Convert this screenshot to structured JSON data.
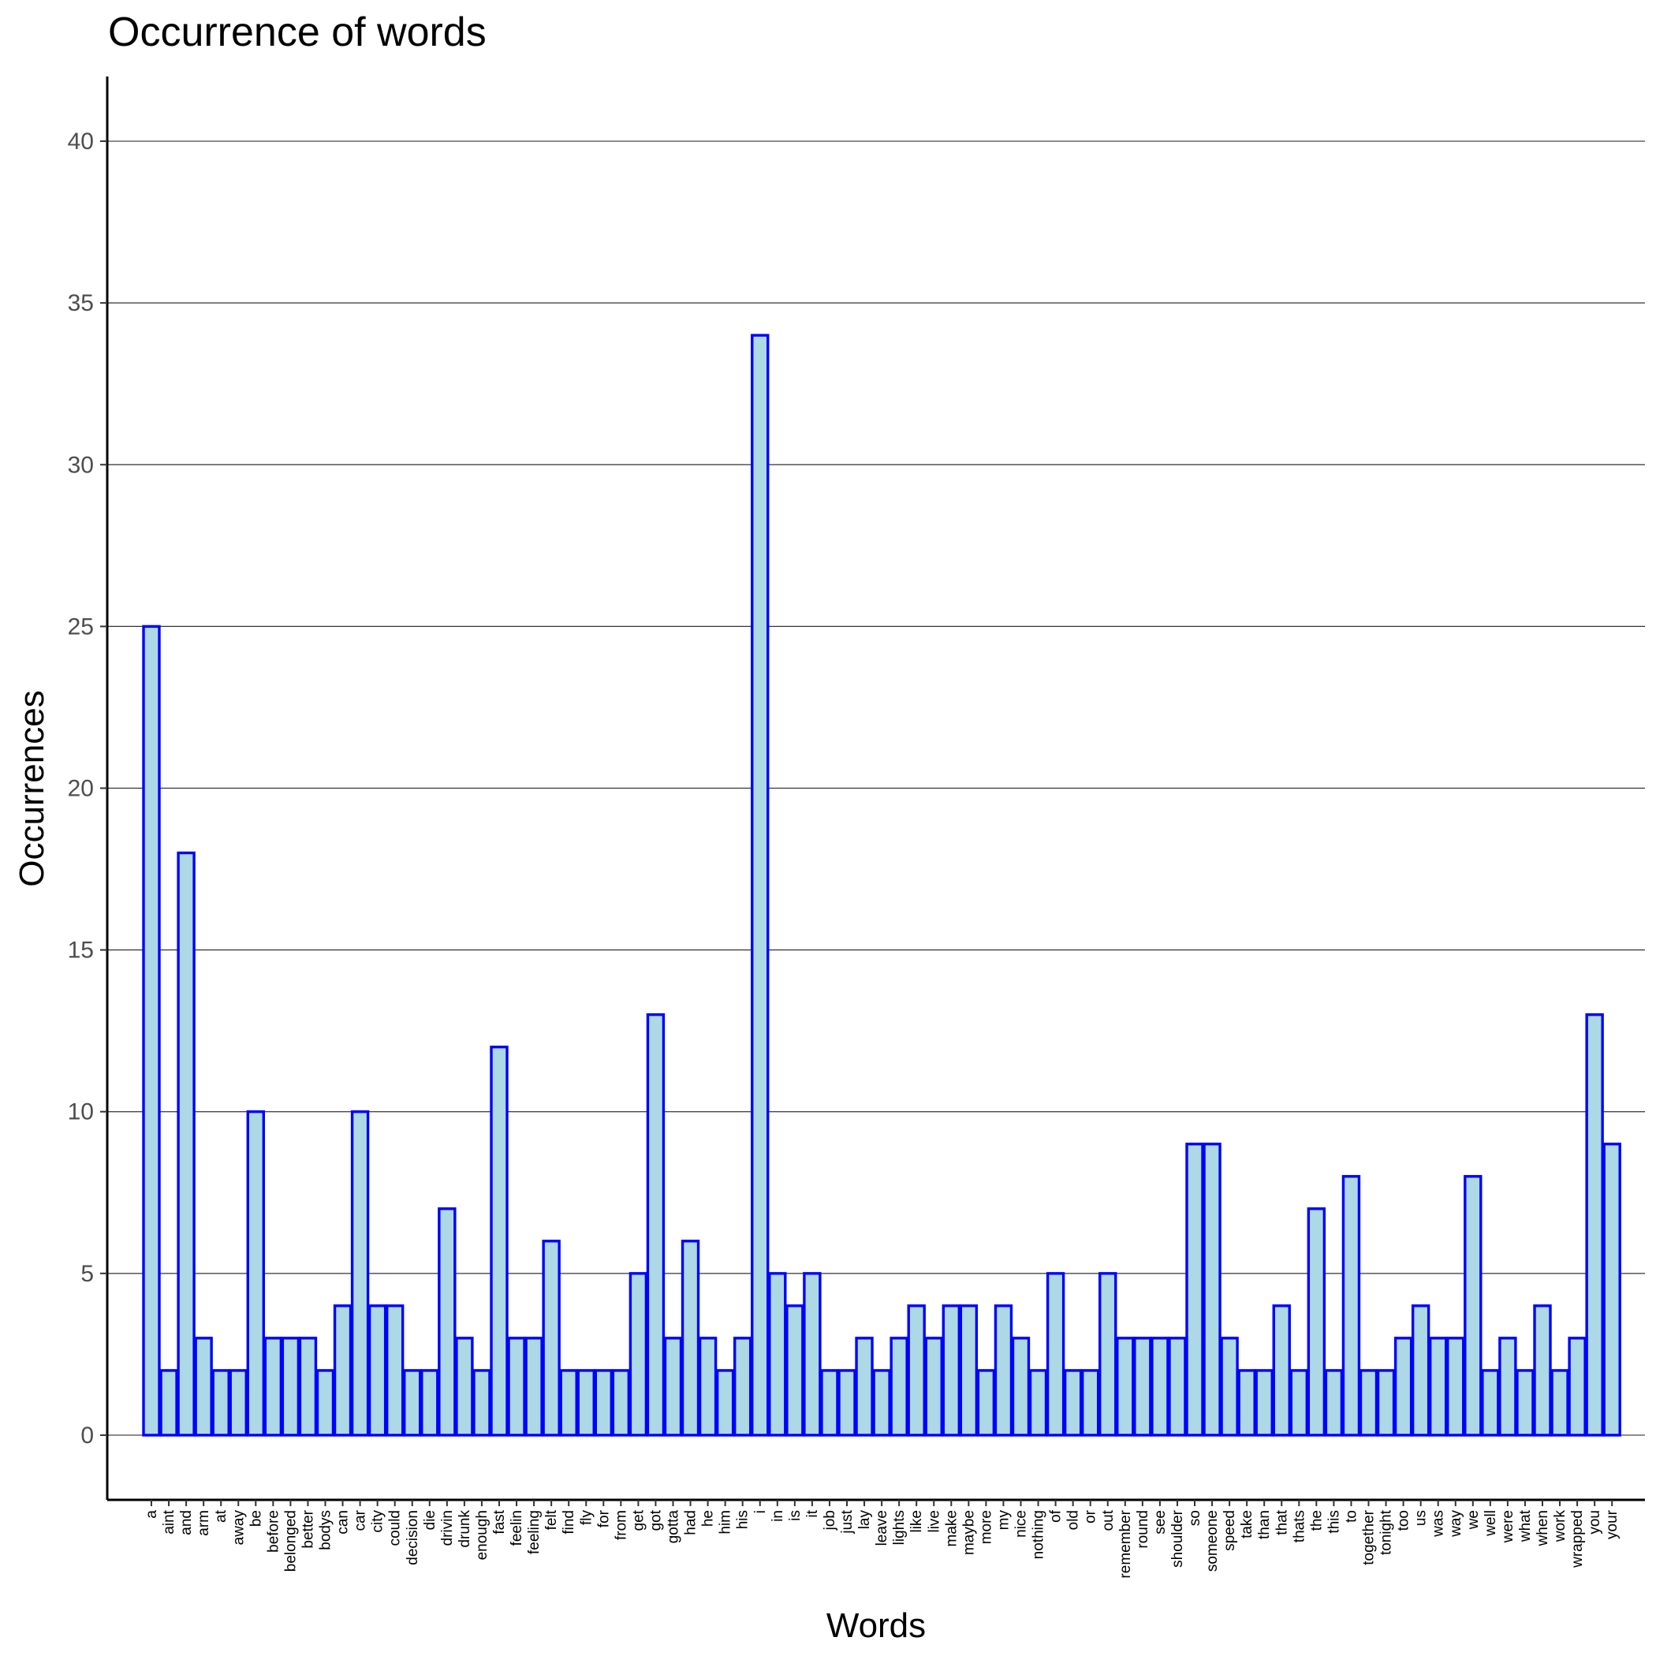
{
  "chart_data": {
    "type": "bar",
    "title": "Occurrence of words",
    "xlabel": "Words",
    "ylabel": "Occurrences",
    "ylim": [
      -2,
      42
    ],
    "yticks": [
      0,
      5,
      10,
      15,
      20,
      25,
      30,
      35,
      40
    ],
    "grid": "horizontal major",
    "legend": "none",
    "colors": {
      "bar_fill": "#add8e6",
      "bar_stroke": "#0000ff"
    },
    "categories": [
      "a",
      "aint",
      "and",
      "arm",
      "at",
      "away",
      "be",
      "before",
      "belonged",
      "better",
      "bodys",
      "can",
      "car",
      "city",
      "could",
      "decision",
      "die",
      "drivin",
      "drunk",
      "enough",
      "fast",
      "feelin",
      "feeling",
      "felt",
      "find",
      "fly",
      "for",
      "from",
      "get",
      "got",
      "gotta",
      "had",
      "he",
      "him",
      "his",
      "i",
      "in",
      "is",
      "it",
      "job",
      "just",
      "lay",
      "leave",
      "lights",
      "like",
      "live",
      "make",
      "maybe",
      "more",
      "my",
      "nice",
      "nothing",
      "of",
      "old",
      "or",
      "out",
      "remember",
      "round",
      "see",
      "shoulder",
      "so",
      "someone",
      "speed",
      "take",
      "than",
      "that",
      "thats",
      "the",
      "this",
      "to",
      "together",
      "tonight",
      "too",
      "us",
      "was",
      "way",
      "we",
      "well",
      "were",
      "what",
      "when",
      "work",
      "wrapped",
      "you",
      "your"
    ],
    "values": [
      25,
      2,
      18,
      3,
      2,
      2,
      10,
      3,
      3,
      3,
      2,
      4,
      10,
      4,
      4,
      2,
      2,
      7,
      3,
      2,
      12,
      3,
      3,
      6,
      2,
      2,
      2,
      2,
      5,
      13,
      3,
      6,
      3,
      2,
      3,
      34,
      5,
      4,
      5,
      2,
      2,
      3,
      2,
      3,
      4,
      3,
      4,
      4,
      2,
      4,
      3,
      2,
      5,
      2,
      2,
      5,
      3,
      3,
      3,
      3,
      9,
      9,
      3,
      2,
      2,
      4,
      2,
      7,
      2,
      8,
      2,
      2,
      3,
      4,
      3,
      3,
      8,
      2,
      3,
      2,
      4,
      2,
      3,
      13,
      9
    ]
  }
}
